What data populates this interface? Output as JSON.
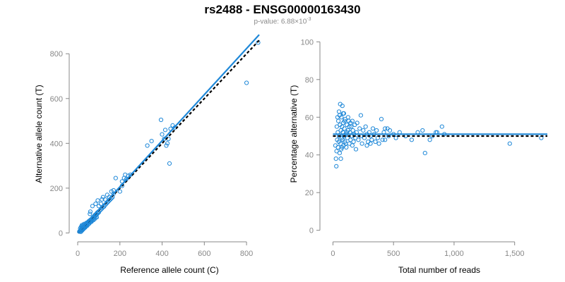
{
  "title": "rs2488 - ENSG00000163430",
  "subtitle": {
    "prefix": "p-value: 6.88×10",
    "exponent": "-3"
  },
  "colors": {
    "series": "#1f88d8",
    "reference_line": "#000000",
    "axis": "#888888"
  },
  "chart_data": [
    {
      "type": "scatter",
      "xlabel": "Reference allele count (C)",
      "ylabel": "Alternative allele count (T)",
      "xlim": [
        0,
        870
      ],
      "ylim": [
        -5,
        870
      ],
      "xticks": [
        0,
        200,
        400,
        600,
        800
      ],
      "yticks": [
        0,
        200,
        400,
        600,
        800
      ],
      "xtick_labels": [
        "0",
        "200",
        "400",
        "600",
        "800"
      ],
      "ytick_labels": [
        "0",
        "200",
        "400",
        "600",
        "800"
      ],
      "grid": false,
      "fit_line": {
        "from": [
          0,
          0
        ],
        "to": [
          860,
          885
        ],
        "style": "solid"
      },
      "reference_line": {
        "from": [
          0,
          0
        ],
        "to": [
          860,
          860
        ],
        "style": "dashed"
      },
      "points": [
        [
          8,
          6
        ],
        [
          10,
          8
        ],
        [
          12,
          10
        ],
        [
          14,
          9
        ],
        [
          15,
          13
        ],
        [
          16,
          15
        ],
        [
          18,
          14
        ],
        [
          20,
          12
        ],
        [
          22,
          18
        ],
        [
          24,
          20
        ],
        [
          26,
          24
        ],
        [
          28,
          22
        ],
        [
          30,
          28
        ],
        [
          32,
          26
        ],
        [
          34,
          30
        ],
        [
          36,
          25
        ],
        [
          12,
          20
        ],
        [
          15,
          25
        ],
        [
          18,
          30
        ],
        [
          20,
          35
        ],
        [
          22,
          25
        ],
        [
          25,
          32
        ],
        [
          28,
          35
        ],
        [
          30,
          40
        ],
        [
          35,
          38
        ],
        [
          38,
          42
        ],
        [
          40,
          35
        ],
        [
          42,
          45
        ],
        [
          45,
          40
        ],
        [
          48,
          48
        ],
        [
          50,
          45
        ],
        [
          52,
          52
        ],
        [
          55,
          50
        ],
        [
          58,
          55
        ],
        [
          60,
          58
        ],
        [
          62,
          52
        ],
        [
          65,
          60
        ],
        [
          68,
          65
        ],
        [
          70,
          62
        ],
        [
          72,
          70
        ],
        [
          75,
          68
        ],
        [
          78,
          75
        ],
        [
          80,
          72
        ],
        [
          82,
          80
        ],
        [
          85,
          78
        ],
        [
          88,
          85
        ],
        [
          90,
          82
        ],
        [
          92,
          90
        ],
        [
          95,
          88
        ],
        [
          98,
          95
        ],
        [
          100,
          92
        ],
        [
          105,
          100
        ],
        [
          110,
          105
        ],
        [
          115,
          110
        ],
        [
          120,
          115
        ],
        [
          125,
          118
        ],
        [
          130,
          125
        ],
        [
          135,
          130
        ],
        [
          140,
          135
        ],
        [
          145,
          140
        ],
        [
          150,
          145
        ],
        [
          155,
          150
        ],
        [
          160,
          155
        ],
        [
          165,
          160
        ],
        [
          170,
          175
        ],
        [
          58,
          85
        ],
        [
          60,
          95
        ],
        [
          70,
          120
        ],
        [
          85,
          130
        ],
        [
          95,
          145
        ],
        [
          100,
          120
        ],
        [
          110,
          130
        ],
        [
          115,
          150
        ],
        [
          120,
          160
        ],
        [
          130,
          150
        ],
        [
          140,
          170
        ],
        [
          150,
          160
        ],
        [
          160,
          185
        ],
        [
          170,
          190
        ],
        [
          180,
          245
        ],
        [
          200,
          185
        ],
        [
          210,
          230
        ],
        [
          220,
          245
        ],
        [
          225,
          260
        ],
        [
          210,
          210
        ],
        [
          230,
          240
        ],
        [
          240,
          255
        ],
        [
          250,
          260
        ],
        [
          330,
          390
        ],
        [
          350,
          410
        ],
        [
          395,
          505
        ],
        [
          400,
          440
        ],
        [
          410,
          420
        ],
        [
          415,
          460
        ],
        [
          420,
          390
        ],
        [
          425,
          400
        ],
        [
          430,
          420
        ],
        [
          435,
          310
        ],
        [
          440,
          465
        ],
        [
          450,
          480
        ],
        [
          460,
          470
        ],
        [
          800,
          670
        ],
        [
          855,
          850
        ],
        [
          15,
          5
        ],
        [
          20,
          10
        ],
        [
          25,
          15
        ],
        [
          30,
          20
        ],
        [
          35,
          28
        ],
        [
          40,
          30
        ],
        [
          45,
          32
        ],
        [
          50,
          38
        ],
        [
          55,
          42
        ],
        [
          60,
          48
        ],
        [
          65,
          50
        ],
        [
          70,
          55
        ],
        [
          75,
          58
        ],
        [
          80,
          62
        ],
        [
          85,
          68
        ],
        [
          90,
          70
        ]
      ]
    },
    {
      "type": "scatter",
      "xlabel": "Total number of reads",
      "ylabel": "Percentage alternative (T)",
      "xlim": [
        -20,
        1770
      ],
      "ylim": [
        -2,
        102
      ],
      "xticks": [
        0,
        500,
        1000,
        1500
      ],
      "yticks": [
        0,
        20,
        40,
        60,
        80,
        100
      ],
      "xtick_labels": [
        "0",
        "500",
        "1,000",
        "1,500"
      ],
      "ytick_labels": [
        "0",
        "20",
        "40",
        "60",
        "80",
        "100"
      ],
      "grid": false,
      "fit_line": {
        "y": 51,
        "style": "solid"
      },
      "reference_line": {
        "y": 50,
        "style": "dashed"
      },
      "points": [
        [
          20,
          45
        ],
        [
          25,
          38
        ],
        [
          28,
          34
        ],
        [
          30,
          42
        ],
        [
          32,
          55
        ],
        [
          35,
          48
        ],
        [
          38,
          60
        ],
        [
          40,
          52
        ],
        [
          42,
          44
        ],
        [
          45,
          58
        ],
        [
          48,
          47
        ],
        [
          50,
          63
        ],
        [
          52,
          50
        ],
        [
          55,
          41
        ],
        [
          58,
          56
        ],
        [
          60,
          67
        ],
        [
          62,
          46
        ],
        [
          65,
          53
        ],
        [
          68,
          43
        ],
        [
          70,
          60
        ],
        [
          72,
          49
        ],
        [
          75,
          55
        ],
        [
          78,
          66
        ],
        [
          80,
          48
        ],
        [
          82,
          52
        ],
        [
          85,
          57
        ],
        [
          88,
          45
        ],
        [
          90,
          62
        ],
        [
          92,
          50
        ],
        [
          95,
          54
        ],
        [
          98,
          47
        ],
        [
          100,
          59
        ],
        [
          105,
          51
        ],
        [
          110,
          44
        ],
        [
          115,
          56
        ],
        [
          120,
          49
        ],
        [
          125,
          53
        ],
        [
          130,
          58
        ],
        [
          135,
          46
        ],
        [
          140,
          52
        ],
        [
          145,
          48
        ],
        [
          150,
          55
        ],
        [
          155,
          50
        ],
        [
          160,
          45
        ],
        [
          165,
          53
        ],
        [
          170,
          47
        ],
        [
          175,
          51
        ],
        [
          180,
          56
        ],
        [
          185,
          49
        ],
        [
          190,
          43
        ],
        [
          195,
          52
        ],
        [
          200,
          57
        ],
        [
          210,
          48
        ],
        [
          220,
          54
        ],
        [
          230,
          50
        ],
        [
          240,
          46
        ],
        [
          250,
          53
        ],
        [
          260,
          49
        ],
        [
          270,
          55
        ],
        [
          280,
          51
        ],
        [
          290,
          47
        ],
        [
          300,
          52
        ],
        [
          310,
          50
        ],
        [
          320,
          48
        ],
        [
          330,
          54
        ],
        [
          340,
          51
        ],
        [
          350,
          47
        ],
        [
          360,
          53
        ],
        [
          370,
          49
        ],
        [
          380,
          46
        ],
        [
          400,
          59
        ],
        [
          420,
          52
        ],
        [
          430,
          48
        ],
        [
          450,
          54
        ],
        [
          460,
          50
        ],
        [
          470,
          53
        ],
        [
          500,
          51
        ],
        [
          520,
          49
        ],
        [
          550,
          52
        ],
        [
          600,
          50
        ],
        [
          650,
          48
        ],
        [
          700,
          52
        ],
        [
          740,
          53
        ],
        [
          760,
          41
        ],
        [
          800,
          48
        ],
        [
          820,
          50
        ],
        [
          850,
          52
        ],
        [
          900,
          55
        ],
        [
          920,
          51
        ],
        [
          1460,
          46
        ],
        [
          1720,
          49
        ],
        [
          55,
          61
        ],
        [
          65,
          38
        ],
        [
          75,
          44
        ],
        [
          85,
          62
        ],
        [
          95,
          58
        ],
        [
          105,
          46
        ],
        [
          115,
          52
        ],
        [
          125,
          60
        ],
        [
          135,
          55
        ],
        [
          145,
          57
        ],
        [
          160,
          58
        ],
        [
          230,
          61
        ],
        [
          280,
          45
        ],
        [
          310,
          46
        ],
        [
          410,
          48
        ],
        [
          430,
          54
        ],
        [
          860,
          52
        ]
      ]
    }
  ]
}
